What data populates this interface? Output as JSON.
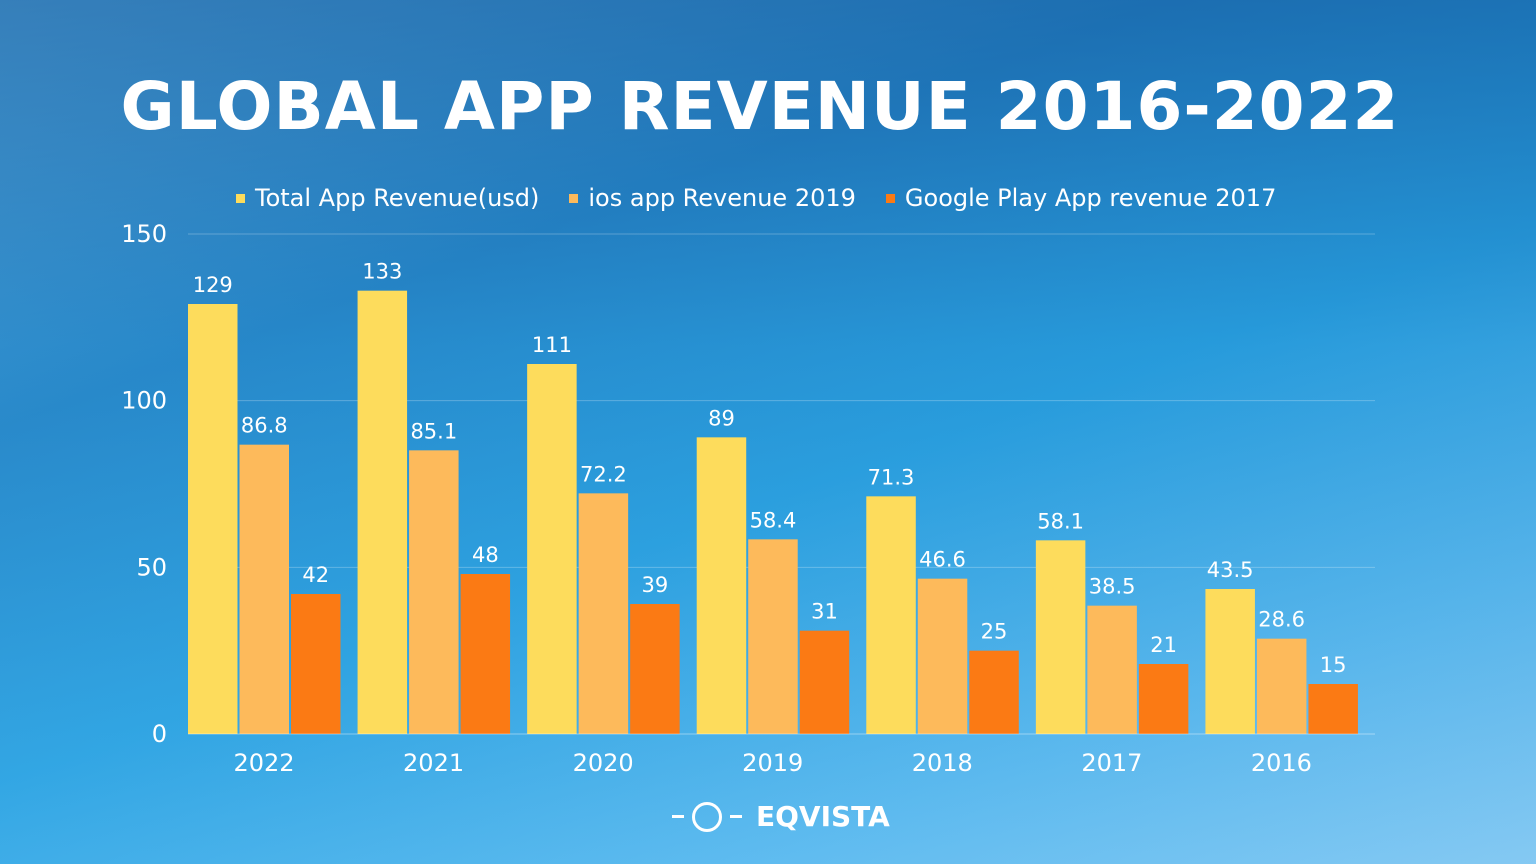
{
  "chart_data": {
    "type": "bar",
    "title": "GLOBAL APP REVENUE 2016-2022",
    "categories": [
      "2022",
      "2021",
      "2020",
      "2019",
      "2018",
      "2017",
      "2016"
    ],
    "series": [
      {
        "name": "Total App Revenue(usd)",
        "color": "#fddc5c",
        "values": [
          129,
          133,
          111,
          89,
          71.3,
          58.1,
          43.5
        ]
      },
      {
        "name": "ios app Revenue 2019",
        "color": "#fdba5b",
        "values": [
          86.8,
          85.1,
          72.2,
          58.4,
          46.6,
          38.5,
          28.6
        ]
      },
      {
        "name": "Google Play App revenue 2017",
        "color": "#fb7a14",
        "values": [
          42,
          48,
          39,
          31,
          25,
          21,
          15
        ]
      }
    ],
    "yticks": [
      0,
      50,
      100,
      150
    ],
    "ylim": [
      0,
      150
    ],
    "grid": true,
    "legend": "top",
    "xlabel": "",
    "ylabel": ""
  },
  "logo": {
    "text": "EQVISTA"
  }
}
